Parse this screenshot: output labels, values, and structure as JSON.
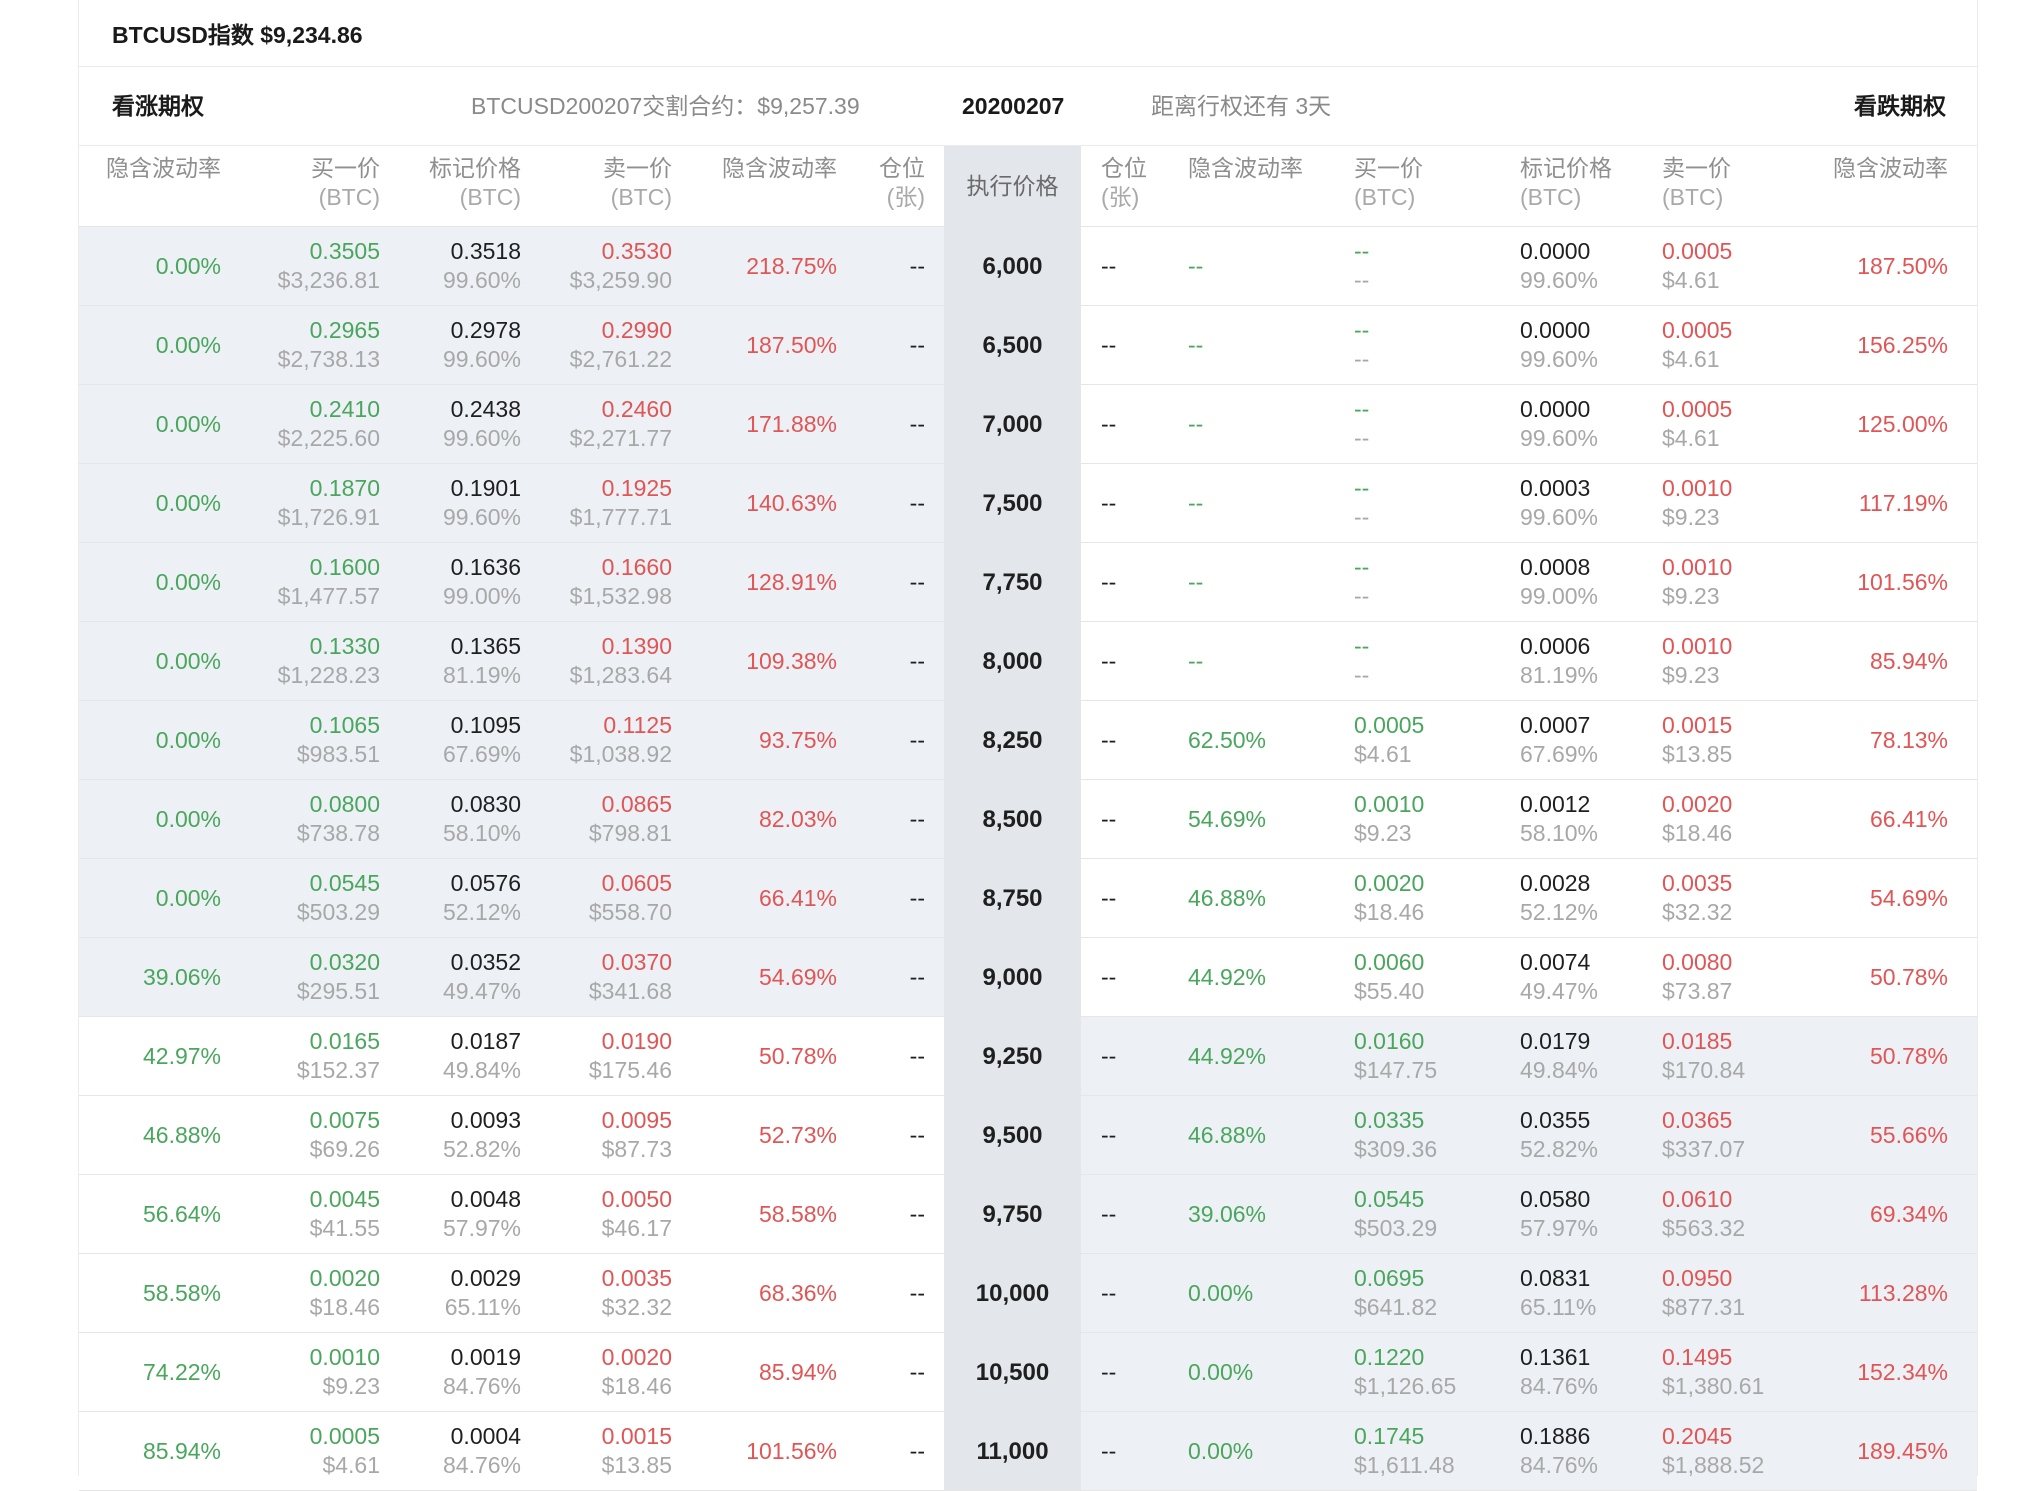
{
  "index_bar": {
    "text": "BTCUSD指数 $9,234.86"
  },
  "info_bar": {
    "call_label": "看涨期权",
    "contract": "BTCUSD200207交割合约：$9,257.39",
    "expiry": "20200207",
    "days_to_expiry": "距离行权还有 3天",
    "put_label": "看跌期权"
  },
  "headers": {
    "call_iv": "隐含波动率",
    "call_bid": "买一价",
    "call_bid_unit": "(BTC)",
    "call_mark": "标记价格",
    "call_mark_unit": "(BTC)",
    "call_ask": "卖一价",
    "call_ask_unit": "(BTC)",
    "call_ask_iv": "隐含波动率",
    "call_pos": "仓位",
    "call_pos_unit": "(张)",
    "strike": "执行价格",
    "put_pos": "仓位",
    "put_pos_unit": "(张)",
    "put_iv": "隐含波动率",
    "put_bid": "买一价",
    "put_bid_unit": "(BTC)",
    "put_mark": "标记价格",
    "put_mark_unit": "(BTC)",
    "put_ask": "卖一价",
    "put_ask_unit": "(BTC)",
    "put_ask_iv": "隐含波动率"
  },
  "colors": {
    "bid": "#4aa65d",
    "ask": "#e05555",
    "in_the_money_bg": "#edf1f5",
    "strike_bg": "#e3e6ea"
  },
  "rows": [
    {
      "strike": "6,000",
      "call_itm": true,
      "call": {
        "iv": "0.00%",
        "bid": "0.3505",
        "bid_usd": "$3,236.81",
        "mark": "0.3518",
        "mark_iv": "99.60%",
        "ask": "0.3530",
        "ask_usd": "$3,259.90",
        "ask_iv": "218.75%",
        "pos": "--"
      },
      "put": {
        "pos": "--",
        "iv": "--",
        "bid": "--",
        "bid_usd": "--",
        "mark": "0.0000",
        "mark_iv": "99.60%",
        "ask": "0.0005",
        "ask_usd": "$4.61",
        "ask_iv": "187.50%"
      }
    },
    {
      "strike": "6,500",
      "call_itm": true,
      "call": {
        "iv": "0.00%",
        "bid": "0.2965",
        "bid_usd": "$2,738.13",
        "mark": "0.2978",
        "mark_iv": "99.60%",
        "ask": "0.2990",
        "ask_usd": "$2,761.22",
        "ask_iv": "187.50%",
        "pos": "--"
      },
      "put": {
        "pos": "--",
        "iv": "--",
        "bid": "--",
        "bid_usd": "--",
        "mark": "0.0000",
        "mark_iv": "99.60%",
        "ask": "0.0005",
        "ask_usd": "$4.61",
        "ask_iv": "156.25%"
      }
    },
    {
      "strike": "7,000",
      "call_itm": true,
      "call": {
        "iv": "0.00%",
        "bid": "0.2410",
        "bid_usd": "$2,225.60",
        "mark": "0.2438",
        "mark_iv": "99.60%",
        "ask": "0.2460",
        "ask_usd": "$2,271.77",
        "ask_iv": "171.88%",
        "pos": "--"
      },
      "put": {
        "pos": "--",
        "iv": "--",
        "bid": "--",
        "bid_usd": "--",
        "mark": "0.0000",
        "mark_iv": "99.60%",
        "ask": "0.0005",
        "ask_usd": "$4.61",
        "ask_iv": "125.00%"
      }
    },
    {
      "strike": "7,500",
      "call_itm": true,
      "call": {
        "iv": "0.00%",
        "bid": "0.1870",
        "bid_usd": "$1,726.91",
        "mark": "0.1901",
        "mark_iv": "99.60%",
        "ask": "0.1925",
        "ask_usd": "$1,777.71",
        "ask_iv": "140.63%",
        "pos": "--"
      },
      "put": {
        "pos": "--",
        "iv": "--",
        "bid": "--",
        "bid_usd": "--",
        "mark": "0.0003",
        "mark_iv": "99.60%",
        "ask": "0.0010",
        "ask_usd": "$9.23",
        "ask_iv": "117.19%"
      }
    },
    {
      "strike": "7,750",
      "call_itm": true,
      "call": {
        "iv": "0.00%",
        "bid": "0.1600",
        "bid_usd": "$1,477.57",
        "mark": "0.1636",
        "mark_iv": "99.00%",
        "ask": "0.1660",
        "ask_usd": "$1,532.98",
        "ask_iv": "128.91%",
        "pos": "--"
      },
      "put": {
        "pos": "--",
        "iv": "--",
        "bid": "--",
        "bid_usd": "--",
        "mark": "0.0008",
        "mark_iv": "99.00%",
        "ask": "0.0010",
        "ask_usd": "$9.23",
        "ask_iv": "101.56%"
      }
    },
    {
      "strike": "8,000",
      "call_itm": true,
      "call": {
        "iv": "0.00%",
        "bid": "0.1330",
        "bid_usd": "$1,228.23",
        "mark": "0.1365",
        "mark_iv": "81.19%",
        "ask": "0.1390",
        "ask_usd": "$1,283.64",
        "ask_iv": "109.38%",
        "pos": "--"
      },
      "put": {
        "pos": "--",
        "iv": "--",
        "bid": "--",
        "bid_usd": "--",
        "mark": "0.0006",
        "mark_iv": "81.19%",
        "ask": "0.0010",
        "ask_usd": "$9.23",
        "ask_iv": "85.94%"
      }
    },
    {
      "strike": "8,250",
      "call_itm": true,
      "call": {
        "iv": "0.00%",
        "bid": "0.1065",
        "bid_usd": "$983.51",
        "mark": "0.1095",
        "mark_iv": "67.69%",
        "ask": "0.1125",
        "ask_usd": "$1,038.92",
        "ask_iv": "93.75%",
        "pos": "--"
      },
      "put": {
        "pos": "--",
        "iv": "62.50%",
        "bid": "0.0005",
        "bid_usd": "$4.61",
        "mark": "0.0007",
        "mark_iv": "67.69%",
        "ask": "0.0015",
        "ask_usd": "$13.85",
        "ask_iv": "78.13%"
      }
    },
    {
      "strike": "8,500",
      "call_itm": true,
      "call": {
        "iv": "0.00%",
        "bid": "0.0800",
        "bid_usd": "$738.78",
        "mark": "0.0830",
        "mark_iv": "58.10%",
        "ask": "0.0865",
        "ask_usd": "$798.81",
        "ask_iv": "82.03%",
        "pos": "--"
      },
      "put": {
        "pos": "--",
        "iv": "54.69%",
        "bid": "0.0010",
        "bid_usd": "$9.23",
        "mark": "0.0012",
        "mark_iv": "58.10%",
        "ask": "0.0020",
        "ask_usd": "$18.46",
        "ask_iv": "66.41%"
      }
    },
    {
      "strike": "8,750",
      "call_itm": true,
      "call": {
        "iv": "0.00%",
        "bid": "0.0545",
        "bid_usd": "$503.29",
        "mark": "0.0576",
        "mark_iv": "52.12%",
        "ask": "0.0605",
        "ask_usd": "$558.70",
        "ask_iv": "66.41%",
        "pos": "--"
      },
      "put": {
        "pos": "--",
        "iv": "46.88%",
        "bid": "0.0020",
        "bid_usd": "$18.46",
        "mark": "0.0028",
        "mark_iv": "52.12%",
        "ask": "0.0035",
        "ask_usd": "$32.32",
        "ask_iv": "54.69%"
      }
    },
    {
      "strike": "9,000",
      "call_itm": true,
      "call": {
        "iv": "39.06%",
        "bid": "0.0320",
        "bid_usd": "$295.51",
        "mark": "0.0352",
        "mark_iv": "49.47%",
        "ask": "0.0370",
        "ask_usd": "$341.68",
        "ask_iv": "54.69%",
        "pos": "--"
      },
      "put": {
        "pos": "--",
        "iv": "44.92%",
        "bid": "0.0060",
        "bid_usd": "$55.40",
        "mark": "0.0074",
        "mark_iv": "49.47%",
        "ask": "0.0080",
        "ask_usd": "$73.87",
        "ask_iv": "50.78%"
      }
    },
    {
      "strike": "9,250",
      "call_itm": false,
      "call": {
        "iv": "42.97%",
        "bid": "0.0165",
        "bid_usd": "$152.37",
        "mark": "0.0187",
        "mark_iv": "49.84%",
        "ask": "0.0190",
        "ask_usd": "$175.46",
        "ask_iv": "50.78%",
        "pos": "--"
      },
      "put": {
        "pos": "--",
        "iv": "44.92%",
        "bid": "0.0160",
        "bid_usd": "$147.75",
        "mark": "0.0179",
        "mark_iv": "49.84%",
        "ask": "0.0185",
        "ask_usd": "$170.84",
        "ask_iv": "50.78%"
      }
    },
    {
      "strike": "9,500",
      "call_itm": false,
      "call": {
        "iv": "46.88%",
        "bid": "0.0075",
        "bid_usd": "$69.26",
        "mark": "0.0093",
        "mark_iv": "52.82%",
        "ask": "0.0095",
        "ask_usd": "$87.73",
        "ask_iv": "52.73%",
        "pos": "--"
      },
      "put": {
        "pos": "--",
        "iv": "46.88%",
        "bid": "0.0335",
        "bid_usd": "$309.36",
        "mark": "0.0355",
        "mark_iv": "52.82%",
        "ask": "0.0365",
        "ask_usd": "$337.07",
        "ask_iv": "55.66%"
      }
    },
    {
      "strike": "9,750",
      "call_itm": false,
      "call": {
        "iv": "56.64%",
        "bid": "0.0045",
        "bid_usd": "$41.55",
        "mark": "0.0048",
        "mark_iv": "57.97%",
        "ask": "0.0050",
        "ask_usd": "$46.17",
        "ask_iv": "58.58%",
        "pos": "--"
      },
      "put": {
        "pos": "--",
        "iv": "39.06%",
        "bid": "0.0545",
        "bid_usd": "$503.29",
        "mark": "0.0580",
        "mark_iv": "57.97%",
        "ask": "0.0610",
        "ask_usd": "$563.32",
        "ask_iv": "69.34%"
      }
    },
    {
      "strike": "10,000",
      "call_itm": false,
      "call": {
        "iv": "58.58%",
        "bid": "0.0020",
        "bid_usd": "$18.46",
        "mark": "0.0029",
        "mark_iv": "65.11%",
        "ask": "0.0035",
        "ask_usd": "$32.32",
        "ask_iv": "68.36%",
        "pos": "--"
      },
      "put": {
        "pos": "--",
        "iv": "0.00%",
        "bid": "0.0695",
        "bid_usd": "$641.82",
        "mark": "0.0831",
        "mark_iv": "65.11%",
        "ask": "0.0950",
        "ask_usd": "$877.31",
        "ask_iv": "113.28%"
      }
    },
    {
      "strike": "10,500",
      "call_itm": false,
      "call": {
        "iv": "74.22%",
        "bid": "0.0010",
        "bid_usd": "$9.23",
        "mark": "0.0019",
        "mark_iv": "84.76%",
        "ask": "0.0020",
        "ask_usd": "$18.46",
        "ask_iv": "85.94%",
        "pos": "--"
      },
      "put": {
        "pos": "--",
        "iv": "0.00%",
        "bid": "0.1220",
        "bid_usd": "$1,126.65",
        "mark": "0.1361",
        "mark_iv": "84.76%",
        "ask": "0.1495",
        "ask_usd": "$1,380.61",
        "ask_iv": "152.34%"
      }
    },
    {
      "strike": "11,000",
      "call_itm": false,
      "call": {
        "iv": "85.94%",
        "bid": "0.0005",
        "bid_usd": "$4.61",
        "mark": "0.0004",
        "mark_iv": "84.76%",
        "ask": "0.0015",
        "ask_usd": "$13.85",
        "ask_iv": "101.56%",
        "pos": "--"
      },
      "put": {
        "pos": "--",
        "iv": "0.00%",
        "bid": "0.1745",
        "bid_usd": "$1,611.48",
        "mark": "0.1886",
        "mark_iv": "84.76%",
        "ask": "0.2045",
        "ask_usd": "$1,888.52",
        "ask_iv": "189.45%"
      }
    }
  ]
}
